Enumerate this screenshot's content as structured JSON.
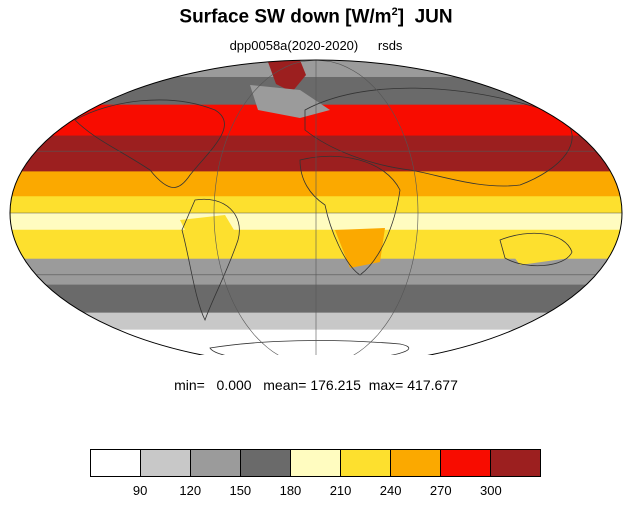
{
  "title": {
    "main": "Surface SW down [W/m",
    "sup": "2",
    "close": "]",
    "month": "JUN"
  },
  "subtitle": {
    "experiment": "dpp0058a(2020-2020)",
    "variable": "rsds"
  },
  "stats": {
    "min_label": "min=",
    "min": "0.000",
    "mean_label": "mean=",
    "mean": "176.215",
    "max_label": "max=",
    "max": "417.677"
  },
  "colorbar": {
    "colors": [
      "#ffffff",
      "#c8c8c8",
      "#9b9b9b",
      "#6a6a6a",
      "#fffcc0",
      "#fde02e",
      "#fba900",
      "#f80c00",
      "#9c1f1f"
    ],
    "labels": [
      "90",
      "120",
      "150",
      "180",
      "210",
      "240",
      "270",
      "300"
    ]
  },
  "map": {
    "projection": "mollweide",
    "zonal_bands": [
      {
        "lat_top": 90,
        "lat_bottom": 73,
        "color": "#9b9b9b"
      },
      {
        "lat_top": 73,
        "lat_bottom": 55,
        "color": "#6a6a6a"
      },
      {
        "lat_top": 55,
        "lat_bottom": 38,
        "color": "#f80c00"
      },
      {
        "lat_top": 38,
        "lat_bottom": 20,
        "color": "#9c1f1f"
      },
      {
        "lat_top": 20,
        "lat_bottom": 8,
        "color": "#fba900"
      },
      {
        "lat_top": 8,
        "lat_bottom": 0,
        "color": "#fde02e"
      },
      {
        "lat_top": 0,
        "lat_bottom": -8,
        "color": "#fffcc0"
      },
      {
        "lat_top": -8,
        "lat_bottom": -22,
        "color": "#fde02e"
      },
      {
        "lat_top": -22,
        "lat_bottom": -35,
        "color": "#9b9b9b"
      },
      {
        "lat_top": -35,
        "lat_bottom": -50,
        "color": "#6a6a6a"
      },
      {
        "lat_top": -50,
        "lat_bottom": -60,
        "color": "#c8c8c8"
      },
      {
        "lat_top": -60,
        "lat_bottom": -90,
        "color": "#ffffff"
      }
    ],
    "gridlines": {
      "meridians": [
        -60,
        0,
        60
      ],
      "parallels": [
        -30,
        0,
        30
      ]
    }
  }
}
